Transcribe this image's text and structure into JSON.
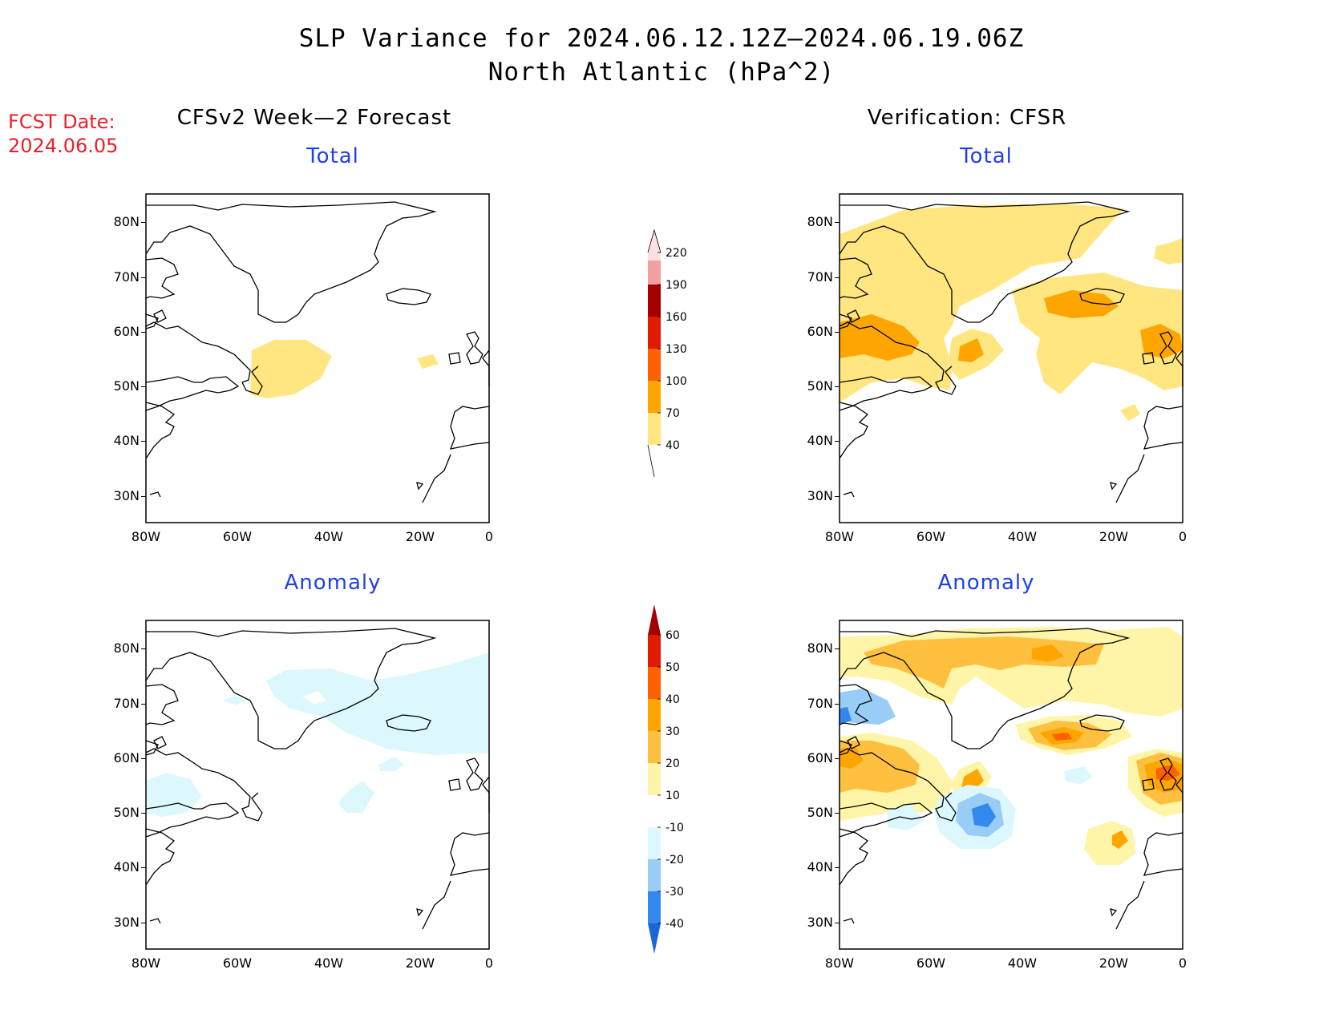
{
  "title": "SLP Variance for 2024.06.12.12Z—2024.06.19.06Z",
  "subtitle": "North Atlantic (hPa^2)",
  "fcst_label": "FCST Date:",
  "fcst_date": "2024.06.05",
  "left_column_title": "CFSv2 Week—2 Forecast",
  "right_column_title": "Verification: CFSR",
  "panel_total_label": "Total",
  "panel_anomaly_label": "Anomaly",
  "lat_labels": [
    "80N",
    "70N",
    "60N",
    "50N",
    "40N",
    "30N"
  ],
  "lon_labels": [
    "80W",
    "60W",
    "40W",
    "20W",
    "0"
  ],
  "total_colorbar": {
    "levels": [
      "40",
      "70",
      "100",
      "130",
      "160",
      "190",
      "220"
    ],
    "colors": [
      "#ffe680",
      "#ffa500",
      "#ff6000",
      "#e01b00",
      "#a50000",
      "#f5a0a0",
      "#fde0e0"
    ]
  },
  "anomaly_colorbar": {
    "levels": [
      "-40",
      "-30",
      "-20",
      "-10",
      "10",
      "20",
      "30",
      "40",
      "50",
      "60"
    ],
    "colors": [
      "#1a66d6",
      "#3388ee",
      "#99ccf6",
      "#dcf8fc",
      "#ffffff",
      "#fff5a8",
      "#ffc040",
      "#ffa500",
      "#ff6000",
      "#e01b00",
      "#a50000"
    ]
  },
  "chart_data": {
    "type": "heatmap",
    "region": "North Atlantic",
    "units": "hPa^2",
    "lon_range": [
      -80,
      0
    ],
    "lat_range": [
      25,
      85
    ],
    "panels": [
      {
        "column": "CFSv2 Week-2 Forecast",
        "field": "Total",
        "max_contour": "40-70",
        "areas": "one area south of Greenland near 52N 50W, small area near 53N 12W"
      },
      {
        "column": "Verification: CFSR",
        "field": "Total",
        "max_contour": "70-100",
        "areas": "40-70 over Greenland, Labrador, central North Atlantic and British Isles; 70-100 near Labrador, 52N 47W, Iceland, British Isles"
      },
      {
        "column": "CFSv2 Week-2 Forecast",
        "field": "Anomaly",
        "max_contour": "-10 to -20",
        "areas": "weak negative anomalies east of Greenland and near Newfoundland"
      },
      {
        "column": "Verification: CFSR",
        "field": "Anomaly",
        "max_contour": "40-50",
        "areas": "positive over Labrador, Greenland, Iceland, British Isles; negative near 47N 40W and Baffin Island"
      }
    ]
  }
}
